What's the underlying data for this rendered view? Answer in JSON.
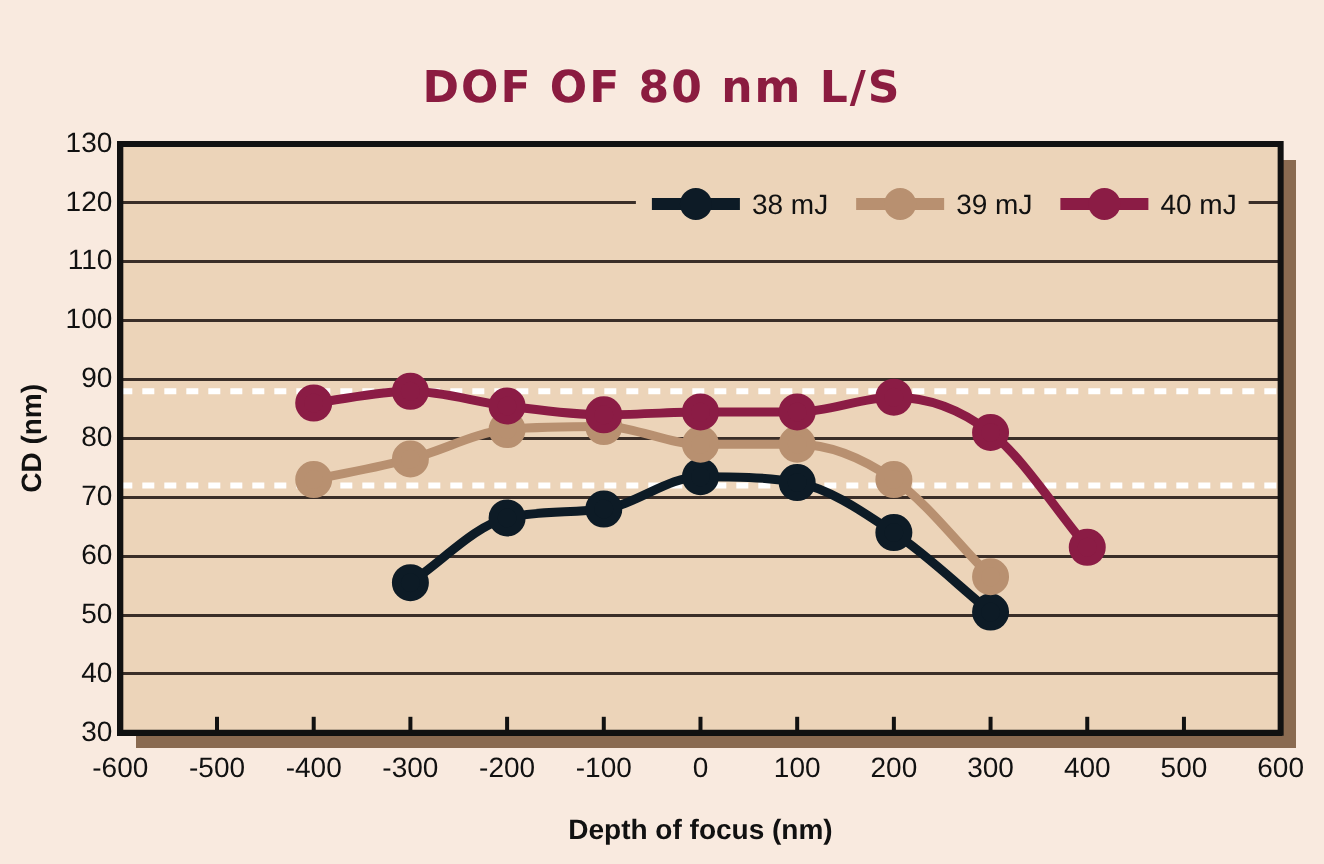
{
  "chart_data": {
    "type": "line",
    "title": "DOF OF 80 nm L/S",
    "xlabel": "Depth of focus (nm)",
    "ylabel": "CD (nm)",
    "xlim": [
      -600,
      600
    ],
    "xticks": [
      -600,
      -500,
      -400,
      -300,
      -200,
      -100,
      0,
      100,
      200,
      300,
      400,
      500,
      600
    ],
    "ylim": [
      30,
      130
    ],
    "yticks": [
      30,
      40,
      50,
      60,
      70,
      80,
      90,
      100,
      110,
      120,
      130
    ],
    "grid": "y",
    "legend": "top right",
    "marker": "circle",
    "line_style": "solid",
    "ref_lines": [
      {
        "axis": "y",
        "value": 88,
        "color": "#ffffff",
        "line_style": "dashed"
      },
      {
        "axis": "y",
        "value": 72,
        "color": "#ffffff",
        "line_style": "dashed"
      }
    ],
    "series": [
      {
        "name": "38 mJ",
        "color": "#0d1b26",
        "x": [
          -300,
          -200,
          -100,
          0,
          100,
          200,
          300
        ],
        "values": [
          55.5,
          66.5,
          68,
          73.5,
          72.5,
          64,
          50.5
        ]
      },
      {
        "name": "39 mJ",
        "color": "#b89070",
        "x": [
          -400,
          -300,
          -200,
          -100,
          0,
          100,
          200,
          300
        ],
        "values": [
          73,
          76.5,
          81.5,
          82,
          79,
          79,
          73,
          56.5
        ]
      },
      {
        "name": "40 mJ",
        "color": "#8b1c45",
        "x": [
          -400,
          -300,
          -200,
          -100,
          0,
          100,
          200,
          300,
          400
        ],
        "values": [
          86,
          88,
          85.5,
          84,
          84.5,
          84.5,
          87,
          81,
          61.5
        ]
      }
    ]
  }
}
